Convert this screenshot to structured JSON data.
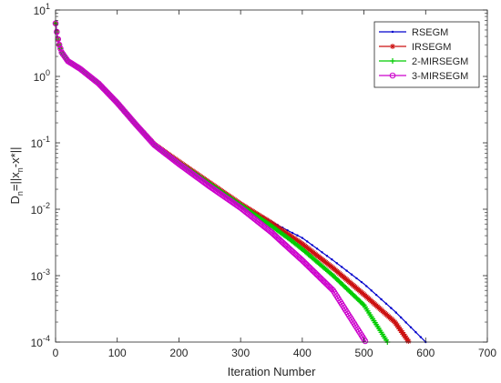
{
  "chart_data": {
    "type": "line",
    "title": "",
    "xlabel": "Iteration Number",
    "ylabel_parts": [
      "D",
      "n",
      "=||x",
      "n",
      "-x*||"
    ],
    "xlim": [
      0,
      700
    ],
    "ylim": [
      0.0001,
      10
    ],
    "yscale": "log",
    "x_ticks": [
      "0",
      "100",
      "200",
      "300",
      "400",
      "500",
      "600",
      "700"
    ],
    "y_ticks": [
      {
        "base": "10",
        "exp": "1"
      },
      {
        "base": "10",
        "exp": "0"
      },
      {
        "base": "10",
        "exp": "-1"
      },
      {
        "base": "10",
        "exp": "-2"
      },
      {
        "base": "10",
        "exp": "-3"
      },
      {
        "base": "10",
        "exp": "-4"
      }
    ],
    "grid": false,
    "legend_position": "top-right",
    "series": [
      {
        "name": "RSEGM",
        "color": "#0000cc",
        "marker": "dot",
        "x": [
          0,
          1,
          3,
          6,
          10,
          20,
          40,
          70,
          100,
          130,
          160,
          200,
          250,
          300,
          350,
          380,
          400,
          450,
          500,
          550,
          600
        ],
        "y": [
          6.3,
          5.5,
          4.0,
          3.0,
          2.3,
          1.7,
          1.3,
          0.78,
          0.4,
          0.19,
          0.095,
          0.052,
          0.025,
          0.012,
          0.0065,
          0.0046,
          0.0037,
          0.0017,
          0.00075,
          0.00029,
          0.0001
        ]
      },
      {
        "name": "IRSEGM",
        "color": "#cc1111",
        "marker": "asterisk",
        "x": [
          0,
          1,
          3,
          6,
          10,
          20,
          40,
          70,
          100,
          130,
          160,
          200,
          250,
          300,
          350,
          380,
          400,
          450,
          500,
          550,
          573
        ],
        "y": [
          6.3,
          5.5,
          4.0,
          3.0,
          2.3,
          1.7,
          1.3,
          0.78,
          0.4,
          0.19,
          0.095,
          0.052,
          0.025,
          0.012,
          0.0062,
          0.004,
          0.003,
          0.0013,
          0.00052,
          0.0002,
          0.0001
        ]
      },
      {
        "name": "2-MIRSEGM",
        "color": "#00cc00",
        "marker": "plus",
        "x": [
          0,
          1,
          3,
          6,
          10,
          20,
          40,
          70,
          100,
          130,
          160,
          200,
          250,
          300,
          350,
          380,
          400,
          450,
          500,
          538
        ],
        "y": [
          6.3,
          5.5,
          4.0,
          3.0,
          2.3,
          1.7,
          1.3,
          0.78,
          0.4,
          0.19,
          0.095,
          0.05,
          0.024,
          0.0115,
          0.0056,
          0.0035,
          0.0025,
          0.001,
          0.00036,
          0.0001
        ]
      },
      {
        "name": "3-MIRSEGM",
        "color": "#cc00cc",
        "marker": "circle",
        "x": [
          0,
          1,
          3,
          6,
          10,
          20,
          40,
          70,
          100,
          130,
          160,
          200,
          250,
          300,
          350,
          380,
          400,
          450,
          503
        ],
        "y": [
          6.3,
          5.5,
          4.0,
          3.0,
          2.3,
          1.7,
          1.3,
          0.78,
          0.4,
          0.19,
          0.093,
          0.048,
          0.022,
          0.0105,
          0.0045,
          0.0025,
          0.0017,
          0.0006,
          0.0001
        ]
      }
    ]
  }
}
